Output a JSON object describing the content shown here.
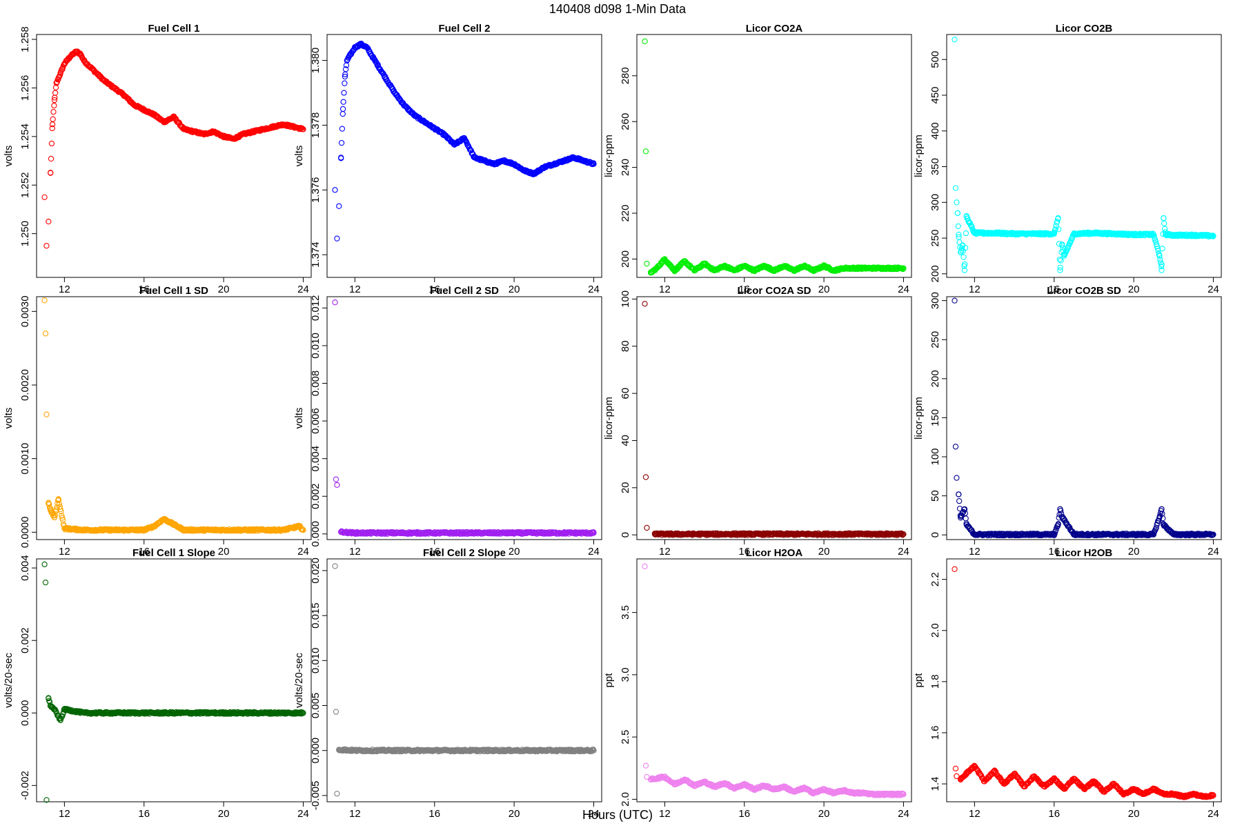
{
  "figure": {
    "title": "140408   d098   1-Min Data",
    "xlabel": "Hours (UTC)"
  },
  "chart_data": [
    {
      "type": "scatter",
      "title": "Fuel Cell 1",
      "ylabel": "volts",
      "color": "#ff0000",
      "xlim": [
        10.6,
        24.4
      ],
      "ylim": [
        1.2482,
        1.2582
      ],
      "xticks": [
        12,
        16,
        20,
        24
      ],
      "yticks": [
        1.25,
        1.252,
        1.254,
        1.256,
        1.258
      ],
      "ytick_labels": [
        "1.250",
        "1.252",
        "1.254",
        "1.256",
        "1.258"
      ],
      "x": [
        11.0,
        11.1,
        11.2,
        11.3,
        11.4,
        11.5,
        11.6,
        11.8,
        12.0,
        12.3,
        12.6,
        12.8,
        13.0,
        13.5,
        14.0,
        14.5,
        15.0,
        15.5,
        16.0,
        16.5,
        17.0,
        17.5,
        18.0,
        18.5,
        19.0,
        19.5,
        20.0,
        20.5,
        21.0,
        21.5,
        22.0,
        22.5,
        23.0,
        23.5,
        24.0
      ],
      "y": [
        1.2515,
        1.2495,
        1.2505,
        1.2525,
        1.2545,
        1.2555,
        1.2562,
        1.2566,
        1.257,
        1.2573,
        1.2575,
        1.2574,
        1.2571,
        1.2567,
        1.2563,
        1.256,
        1.2557,
        1.2553,
        1.2551,
        1.2549,
        1.2546,
        1.2548,
        1.2543,
        1.2542,
        1.2541,
        1.2542,
        1.254,
        1.2539,
        1.2541,
        1.2542,
        1.2543,
        1.2544,
        1.2545,
        1.2544,
        1.2543
      ]
    },
    {
      "type": "scatter",
      "title": "Fuel Cell 2",
      "ylabel": "volts",
      "color": "#0000ff",
      "xlim": [
        10.6,
        24.4
      ],
      "ylim": [
        1.3733,
        1.3808
      ],
      "xticks": [
        12,
        16,
        20,
        24
      ],
      "yticks": [
        1.374,
        1.376,
        1.378,
        1.38
      ],
      "ytick_labels": [
        "1.374",
        "1.376",
        "1.378",
        "1.380"
      ],
      "x": [
        11.0,
        11.1,
        11.2,
        11.3,
        11.4,
        11.5,
        11.6,
        11.8,
        12.0,
        12.3,
        12.6,
        12.8,
        13.0,
        13.5,
        14.0,
        14.5,
        15.0,
        15.5,
        16.0,
        16.5,
        17.0,
        17.5,
        18.0,
        18.5,
        19.0,
        19.5,
        20.0,
        20.5,
        21.0,
        21.5,
        22.0,
        22.5,
        23.0,
        23.5,
        24.0
      ],
      "y": [
        1.376,
        1.3745,
        1.3755,
        1.377,
        1.3785,
        1.3795,
        1.38,
        1.3802,
        1.3804,
        1.3805,
        1.3804,
        1.3802,
        1.38,
        1.3795,
        1.379,
        1.3786,
        1.3783,
        1.3781,
        1.3779,
        1.3777,
        1.3774,
        1.3776,
        1.377,
        1.3769,
        1.3768,
        1.3769,
        1.3768,
        1.3766,
        1.3765,
        1.3767,
        1.3768,
        1.3769,
        1.377,
        1.3769,
        1.3768
      ]
    },
    {
      "type": "scatter",
      "title": "Licor CO2A",
      "ylabel": "licor-ppm",
      "color": "#00ee00",
      "xlim": [
        10.6,
        24.4
      ],
      "ylim": [
        192,
        298
      ],
      "xticks": [
        12,
        16,
        20,
        24
      ],
      "yticks": [
        200,
        220,
        240,
        260,
        280
      ],
      "ytick_labels": [
        "200",
        "220",
        "240",
        "260",
        "280"
      ],
      "x": [
        11.0,
        11.05,
        11.1,
        11.3,
        11.6,
        12.0,
        12.5,
        13.0,
        13.5,
        14.0,
        14.5,
        15.0,
        15.5,
        16.0,
        16.5,
        17.0,
        17.5,
        18.0,
        18.5,
        19.0,
        19.5,
        20.0,
        20.5,
        21.0,
        21.5,
        22.0,
        22.5,
        23.0,
        23.5,
        24.0
      ],
      "y": [
        295,
        247,
        198,
        194,
        196,
        200,
        195,
        199,
        195,
        198,
        195,
        197,
        195,
        197,
        195,
        197,
        195,
        197,
        195,
        197,
        195,
        197,
        195,
        196,
        196,
        196,
        196,
        196,
        196,
        196
      ]
    },
    {
      "type": "scatter",
      "title": "Licor CO2B",
      "ylabel": "licor-ppm",
      "color": "#00ffff",
      "xlim": [
        10.6,
        24.4
      ],
      "ylim": [
        195,
        535
      ],
      "xticks": [
        12,
        16,
        20,
        24
      ],
      "yticks": [
        200,
        250,
        300,
        350,
        400,
        450,
        500
      ],
      "ytick_labels": [
        "200",
        "250",
        "300",
        "350",
        "400",
        "450",
        "500"
      ],
      "x": [
        11.0,
        11.05,
        11.1,
        11.15,
        11.2,
        11.3,
        11.4,
        11.5,
        11.6,
        12.0,
        13.0,
        14.0,
        15.0,
        16.0,
        16.2,
        16.3,
        16.4,
        16.5,
        17.0,
        18.0,
        19.0,
        20.0,
        21.0,
        21.3,
        21.4,
        21.5,
        21.6,
        22.0,
        23.0,
        24.0
      ],
      "y": [
        528,
        320,
        300,
        285,
        255,
        230,
        240,
        205,
        280,
        257,
        257,
        256,
        256,
        256,
        278,
        205,
        240,
        225,
        256,
        257,
        256,
        255,
        255,
        225,
        205,
        278,
        255,
        254,
        254,
        253
      ]
    },
    {
      "type": "scatter",
      "title": "Fuel Cell 1 SD",
      "ylabel": "volts",
      "color": "#ffa500",
      "xlim": [
        10.6,
        24.4
      ],
      "ylim": [
        -0.0001,
        0.0032
      ],
      "xticks": [
        12,
        16,
        20,
        24
      ],
      "yticks": [
        0,
        0.001,
        0.002,
        0.003
      ],
      "ytick_labels": [
        "0.0000",
        "0.0010",
        "0.0020",
        "0.0030"
      ],
      "x": [
        11.0,
        11.05,
        11.1,
        11.2,
        11.3,
        11.5,
        11.7,
        12.0,
        13.0,
        14.0,
        15.0,
        16.0,
        16.5,
        17.0,
        18.0,
        19.0,
        20.0,
        21.0,
        22.0,
        23.0,
        23.8,
        24.0
      ],
      "y": [
        0.00315,
        0.0027,
        0.0016,
        0.0004,
        0.0003,
        0.0002,
        0.00045,
        5e-05,
        3e-05,
        3e-05,
        3e-05,
        3e-05,
        8e-05,
        0.00018,
        3e-05,
        3e-05,
        3e-05,
        3e-05,
        3e-05,
        3e-05,
        8e-05,
        3e-05
      ]
    },
    {
      "type": "scatter",
      "title": "Fuel Cell 2 SD",
      "ylabel": "volts",
      "color": "#a020f0",
      "xlim": [
        10.6,
        24.4
      ],
      "ylim": [
        -0.0003,
        0.0126
      ],
      "xticks": [
        12,
        16,
        20,
        24
      ],
      "yticks": [
        0,
        0.002,
        0.004,
        0.006,
        0.008,
        0.01,
        0.012
      ],
      "ytick_labels": [
        "0.000",
        "0.002",
        "0.004",
        "0.006",
        "0.008",
        "0.010",
        "0.012"
      ],
      "x": [
        11.0,
        11.05,
        11.1,
        11.3,
        12.0,
        13.0,
        14.0,
        15.0,
        16.0,
        17.0,
        18.0,
        19.0,
        20.0,
        21.0,
        22.0,
        23.0,
        24.0
      ],
      "y": [
        0.0123,
        0.0029,
        0.0026,
        0.0001,
        5e-05,
        5e-05,
        5e-05,
        5e-05,
        5e-05,
        5e-05,
        5e-05,
        5e-05,
        5e-05,
        5e-05,
        5e-05,
        5e-05,
        5e-05
      ]
    },
    {
      "type": "scatter",
      "title": "Licor CO2A SD",
      "ylabel": "licor-ppm",
      "color": "#8b0000",
      "xlim": [
        10.6,
        24.4
      ],
      "ylim": [
        -2,
        101
      ],
      "xticks": [
        12,
        16,
        20,
        24
      ],
      "yticks": [
        0,
        20,
        40,
        60,
        80,
        100
      ],
      "ytick_labels": [
        "0",
        "20",
        "40",
        "60",
        "80",
        "100"
      ],
      "x": [
        11.0,
        11.05,
        11.1,
        11.5,
        12.0,
        13.0,
        14.0,
        15.0,
        16.0,
        17.0,
        18.0,
        19.0,
        20.0,
        21.0,
        22.0,
        23.0,
        24.0
      ],
      "y": [
        98,
        24.5,
        3,
        0.3,
        0.3,
        0.3,
        0.3,
        0.3,
        0.3,
        0.3,
        0.3,
        0.3,
        0.3,
        0.3,
        0.3,
        0.3,
        0.3
      ]
    },
    {
      "type": "scatter",
      "title": "Licor CO2B SD",
      "ylabel": "licor-ppm",
      "color": "#00008b",
      "xlim": [
        10.6,
        24.4
      ],
      "ylim": [
        -6,
        305
      ],
      "xticks": [
        12,
        16,
        20,
        24
      ],
      "yticks": [
        0,
        50,
        100,
        150,
        200,
        250,
        300
      ],
      "ytick_labels": [
        "0",
        "50",
        "100",
        "150",
        "200",
        "250",
        "300"
      ],
      "x": [
        11.0,
        11.05,
        11.1,
        11.2,
        11.3,
        11.5,
        11.6,
        12.0,
        13.0,
        14.0,
        15.0,
        16.0,
        16.2,
        16.3,
        16.4,
        17.0,
        18.0,
        19.0,
        20.0,
        21.0,
        21.3,
        21.4,
        21.5,
        22.0,
        23.0,
        24.0
      ],
      "y": [
        300,
        113,
        73,
        52,
        22,
        33,
        13,
        0.5,
        0.5,
        0.5,
        0.5,
        0.5,
        13,
        33,
        23,
        0.5,
        0.5,
        0.5,
        0.5,
        0.5,
        23,
        33,
        13,
        0.5,
        0.5,
        0.5
      ]
    },
    {
      "type": "scatter",
      "title": "Fuel Cell 1 Slope",
      "ylabel": "volts/20-sec",
      "color": "#006400",
      "xlim": [
        10.6,
        24.4
      ],
      "ylim": [
        -0.00245,
        0.00425
      ],
      "xticks": [
        12,
        16,
        20,
        24
      ],
      "yticks": [
        -0.002,
        0,
        0.002,
        0.004
      ],
      "ytick_labels": [
        "-0.002",
        "0.000",
        "0.002",
        "0.004"
      ],
      "x": [
        11.0,
        11.05,
        11.1,
        11.2,
        11.3,
        11.5,
        11.8,
        12.0,
        13.0,
        14.0,
        15.0,
        16.0,
        17.0,
        18.0,
        19.0,
        20.0,
        21.0,
        22.0,
        23.0,
        24.0
      ],
      "y": [
        0.0041,
        0.0036,
        -0.0024,
        0.0004,
        0.0002,
        0.0001,
        -0.0002,
        0.0001,
        0.0,
        0.0,
        0.0,
        0.0,
        0.0,
        0.0,
        0.0,
        0.0,
        0.0,
        0.0,
        0.0,
        0.0
      ]
    },
    {
      "type": "scatter",
      "title": "Fuel Cell 2 Slope",
      "ylabel": "volts/20-sec",
      "color": "#808080",
      "xlim": [
        10.6,
        24.4
      ],
      "ylim": [
        -0.0057,
        0.0213
      ],
      "xticks": [
        12,
        16,
        20,
        24
      ],
      "yticks": [
        -0.005,
        0,
        0.005,
        0.01,
        0.015,
        0.02
      ],
      "ytick_labels": [
        "-0.005",
        "0.000",
        "0.005",
        "0.010",
        "0.015",
        "0.020"
      ],
      "x": [
        11.0,
        11.05,
        11.1,
        11.2,
        12.0,
        13.0,
        14.0,
        15.0,
        16.0,
        17.0,
        18.0,
        19.0,
        20.0,
        21.0,
        22.0,
        23.0,
        24.0
      ],
      "y": [
        0.0205,
        0.0043,
        -0.0048,
        0.0001,
        0.0,
        0.0,
        0.0,
        0.0,
        0.0,
        0.0,
        0.0,
        0.0,
        0.0,
        0.0,
        0.0,
        0.0,
        0.0
      ]
    },
    {
      "type": "scatter",
      "title": "Licor H2OA",
      "ylabel": "ppt",
      "color": "#ee82ee",
      "xlim": [
        10.6,
        24.4
      ],
      "ylim": [
        1.98,
        3.93
      ],
      "xticks": [
        12,
        16,
        20,
        24
      ],
      "yticks": [
        2.0,
        2.5,
        3.0,
        3.5
      ],
      "ytick_labels": [
        "2.0",
        "2.5",
        "3.0",
        "3.5"
      ],
      "x": [
        11.0,
        11.05,
        11.1,
        11.3,
        12.0,
        12.5,
        13.0,
        13.5,
        14.0,
        14.5,
        15.0,
        15.5,
        16.0,
        16.5,
        17.0,
        17.5,
        18.0,
        18.5,
        19.0,
        19.5,
        20.0,
        20.5,
        21.0,
        21.5,
        22.0,
        22.5,
        23.0,
        23.5,
        24.0
      ],
      "y": [
        3.87,
        2.27,
        2.18,
        2.16,
        2.18,
        2.12,
        2.16,
        2.11,
        2.14,
        2.1,
        2.13,
        2.09,
        2.12,
        2.08,
        2.11,
        2.08,
        2.1,
        2.06,
        2.09,
        2.05,
        2.08,
        2.05,
        2.07,
        2.05,
        2.05,
        2.04,
        2.04,
        2.04,
        2.04
      ]
    },
    {
      "type": "scatter",
      "title": "Licor H2OB",
      "ylabel": "ppt",
      "color": "#ff0000",
      "xlim": [
        10.6,
        24.4
      ],
      "ylim": [
        1.33,
        2.28
      ],
      "xticks": [
        12,
        16,
        20,
        24
      ],
      "yticks": [
        1.4,
        1.6,
        1.8,
        2.0,
        2.2
      ],
      "ytick_labels": [
        "1.4",
        "1.6",
        "1.8",
        "2.0",
        "2.2"
      ],
      "x": [
        11.0,
        11.05,
        11.1,
        11.3,
        12.0,
        12.5,
        13.0,
        13.5,
        14.0,
        14.5,
        15.0,
        15.5,
        16.0,
        16.5,
        17.0,
        17.5,
        18.0,
        18.5,
        19.0,
        19.5,
        20.0,
        20.5,
        21.0,
        21.5,
        22.0,
        22.5,
        23.0,
        23.5,
        24.0
      ],
      "y": [
        2.24,
        1.46,
        1.43,
        1.42,
        1.47,
        1.41,
        1.45,
        1.4,
        1.44,
        1.39,
        1.43,
        1.39,
        1.42,
        1.38,
        1.42,
        1.38,
        1.41,
        1.37,
        1.4,
        1.36,
        1.38,
        1.36,
        1.38,
        1.36,
        1.36,
        1.35,
        1.36,
        1.35,
        1.355
      ]
    }
  ]
}
